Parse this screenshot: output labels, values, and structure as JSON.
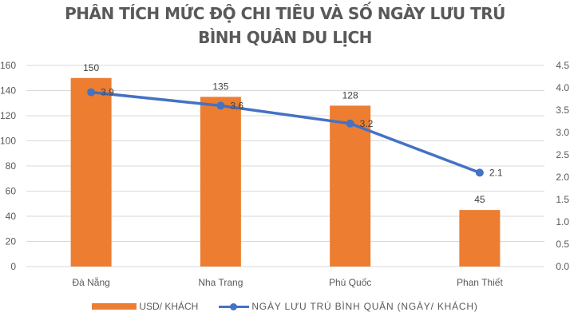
{
  "chart_data": {
    "type": "bar+line",
    "title": "PHÂN TÍCH MỨC ĐỘ CHI TIÊU VÀ SỐ NGÀY LƯU TRÚ BÌNH QUÂN DU LỊCH",
    "title_lines": [
      "PHÂN TÍCH MỨC ĐỘ CHI TIÊU VÀ SỐ NGÀY LƯU TRÚ",
      "BÌNH QUÂN DU LỊCH"
    ],
    "categories": [
      "Đà Nẵng",
      "Nha Trang",
      "Phú Quốc",
      "Phan Thiết"
    ],
    "series": [
      {
        "name": "USD/ KHÁCH",
        "type": "bar",
        "axis": "left",
        "color": "#ED7D31",
        "values": [
          150,
          135,
          128,
          45
        ],
        "labels": [
          "150",
          "135",
          "128",
          "45"
        ]
      },
      {
        "name": "NGÀY LƯU TRÚ BÌNH QUÂN (NGÀY/ KHÁCH)",
        "type": "line",
        "axis": "right",
        "color": "#4472C4",
        "values": [
          3.9,
          3.6,
          3.2,
          2.1
        ],
        "labels": [
          "3.9",
          "3.6",
          "3.2",
          "2.1"
        ]
      }
    ],
    "y_left": {
      "label": "",
      "ylim": [
        0,
        160
      ],
      "ticks": [
        "0",
        "20",
        "40",
        "60",
        "80",
        "100",
        "120",
        "140",
        "160"
      ]
    },
    "y_right": {
      "label": "",
      "ylim": [
        0,
        4.5
      ],
      "ticks": [
        "0.0",
        "0.5",
        "1.0",
        "1.5",
        "2.0",
        "2.5",
        "3.0",
        "3.5",
        "4.0",
        "4.5"
      ]
    },
    "xlabel": "",
    "grid": true,
    "legend_position": "bottom"
  }
}
